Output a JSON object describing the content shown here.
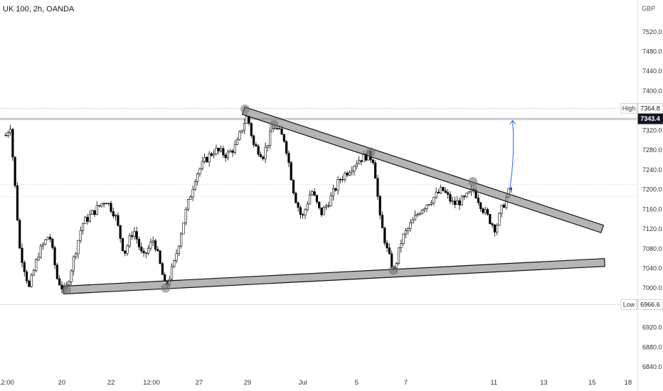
{
  "header": {
    "title": "UK 100, 2h, OANDA",
    "currency": "GBP"
  },
  "chart_data": {
    "type": "candlestick",
    "y_ticks": [
      6840,
      6880,
      6920,
      6960,
      7000,
      7040,
      7080,
      7120,
      7160,
      7200,
      7240,
      7280,
      7320,
      7360,
      7400,
      7440,
      7480,
      7520
    ],
    "y_range": [
      6820,
      7550
    ],
    "x_ticks": [
      {
        "label": "12:00",
        "slot": 0
      },
      {
        "label": "20",
        "slot": 72
      },
      {
        "label": "22",
        "slot": 135
      },
      {
        "label": "12:00",
        "slot": 187
      },
      {
        "label": "27",
        "slot": 248
      },
      {
        "label": "29",
        "slot": 310
      },
      {
        "label": "Jul",
        "slot": 381
      },
      {
        "label": "5",
        "slot": 450
      },
      {
        "label": "7",
        "slot": 513
      },
      {
        "label": "11",
        "slot": 626
      },
      {
        "label": "13",
        "slot": 690
      },
      {
        "label": "15",
        "slot": 752
      },
      {
        "label": "18",
        "slot": 798
      }
    ],
    "high": {
      "label": "High",
      "value": 7364.8,
      "text": "7364.8"
    },
    "low": {
      "label": "Low",
      "value": 6966.6,
      "text": "6966.6"
    },
    "current": {
      "value": 7343.4,
      "text": "7343.4"
    },
    "ref_lines": [
      7210,
      7186
    ],
    "trendlines": [
      {
        "name": "descending resistance",
        "from": {
          "slot": 305,
          "value": 7360
        },
        "to": {
          "slot": 765,
          "value": 7120
        }
      },
      {
        "name": "ascending support",
        "from": {
          "slot": 74,
          "value": 6996
        },
        "to": {
          "slot": 768,
          "value": 7052
        }
      }
    ],
    "projection_arrow": {
      "from": {
        "slot": 646,
        "value": 7198
      },
      "to": {
        "slot": 650,
        "value": 7340
      }
    },
    "touch_points": [
      {
        "slot": 78,
        "value": 6996
      },
      {
        "slot": 205,
        "value": 7000
      },
      {
        "slot": 307,
        "value": 7363
      },
      {
        "slot": 344,
        "value": 7332
      },
      {
        "slot": 468,
        "value": 7276
      },
      {
        "slot": 497,
        "value": 7036
      },
      {
        "slot": 599,
        "value": 7216
      }
    ],
    "key_points": [
      {
        "slot": 0,
        "value": 7310
      },
      {
        "slot": 6,
        "value": 7330
      },
      {
        "slot": 18,
        "value": 7080
      },
      {
        "slot": 30,
        "value": 7000
      },
      {
        "slot": 42,
        "value": 7070
      },
      {
        "slot": 56,
        "value": 7110
      },
      {
        "slot": 66,
        "value": 7020
      },
      {
        "slot": 76,
        "value": 6990
      },
      {
        "slot": 84,
        "value": 7040
      },
      {
        "slot": 98,
        "value": 7130
      },
      {
        "slot": 116,
        "value": 7160
      },
      {
        "slot": 128,
        "value": 7180
      },
      {
        "slot": 140,
        "value": 7150
      },
      {
        "slot": 152,
        "value": 7070
      },
      {
        "slot": 164,
        "value": 7120
      },
      {
        "slot": 176,
        "value": 7060
      },
      {
        "slot": 190,
        "value": 7100
      },
      {
        "slot": 205,
        "value": 7000
      },
      {
        "slot": 216,
        "value": 7050
      },
      {
        "slot": 230,
        "value": 7150
      },
      {
        "slot": 244,
        "value": 7230
      },
      {
        "slot": 256,
        "value": 7260
      },
      {
        "slot": 268,
        "value": 7280
      },
      {
        "slot": 284,
        "value": 7270
      },
      {
        "slot": 296,
        "value": 7290
      },
      {
        "slot": 304,
        "value": 7330
      },
      {
        "slot": 310,
        "value": 7350
      },
      {
        "slot": 318,
        "value": 7290
      },
      {
        "slot": 330,
        "value": 7270
      },
      {
        "slot": 344,
        "value": 7330
      },
      {
        "slot": 358,
        "value": 7300
      },
      {
        "slot": 370,
        "value": 7190
      },
      {
        "slot": 380,
        "value": 7140
      },
      {
        "slot": 392,
        "value": 7200
      },
      {
        "slot": 404,
        "value": 7150
      },
      {
        "slot": 416,
        "value": 7180
      },
      {
        "slot": 428,
        "value": 7220
      },
      {
        "slot": 440,
        "value": 7240
      },
      {
        "slot": 452,
        "value": 7260
      },
      {
        "slot": 464,
        "value": 7270
      },
      {
        "slot": 472,
        "value": 7260
      },
      {
        "slot": 480,
        "value": 7140
      },
      {
        "slot": 490,
        "value": 7070
      },
      {
        "slot": 498,
        "value": 7035
      },
      {
        "slot": 508,
        "value": 7100
      },
      {
        "slot": 520,
        "value": 7130
      },
      {
        "slot": 532,
        "value": 7160
      },
      {
        "slot": 546,
        "value": 7180
      },
      {
        "slot": 560,
        "value": 7200
      },
      {
        "slot": 574,
        "value": 7170
      },
      {
        "slot": 588,
        "value": 7180
      },
      {
        "slot": 600,
        "value": 7200
      },
      {
        "slot": 612,
        "value": 7160
      },
      {
        "slot": 620,
        "value": 7140
      },
      {
        "slot": 628,
        "value": 7120
      },
      {
        "slot": 636,
        "value": 7160
      },
      {
        "slot": 646,
        "value": 7198
      },
      {
        "slot": 650,
        "value": 7205
      }
    ]
  }
}
